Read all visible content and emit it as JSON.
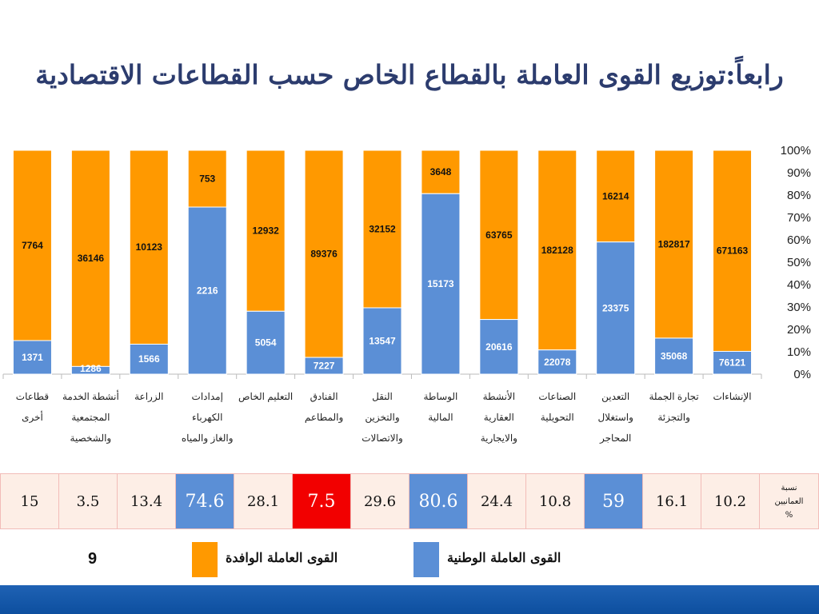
{
  "title": "رابعاً:توزيع القوى العاملة بالقطاع الخاص حسب القطاعات الاقتصادية",
  "chart_data": {
    "type": "bar",
    "stacked": "percent",
    "categories": [
      [
        "قطاعات",
        "أخرى"
      ],
      [
        "أنشطة الخدمة",
        "المجتمعية",
        "والشخصية"
      ],
      [
        "الزراعة"
      ],
      [
        "إمدادات",
        "الكهرباء",
        "والغاز والمياه"
      ],
      [
        "التعليم الخاص"
      ],
      [
        "الفنادق",
        "والمطاعم"
      ],
      [
        "النقل",
        "والتخزين",
        "والاتصالات"
      ],
      [
        "الوساطة",
        "المالية"
      ],
      [
        "الأنشطة",
        "العقارية",
        "والايجارية"
      ],
      [
        "الصناعات",
        "التحويلية"
      ],
      [
        "التعدين",
        "واستغلال",
        "المحاجر"
      ],
      [
        "تجارة الجملة",
        "والتجزئة"
      ],
      [
        "الإنشاءات"
      ]
    ],
    "series": [
      {
        "name": "القوى العاملة الوطنية",
        "color": "#5b8fd6",
        "values": [
          1371,
          1286,
          1566,
          2216,
          5054,
          7227,
          13547,
          15173,
          20616,
          22078,
          23375,
          35068,
          76121
        ]
      },
      {
        "name": "القوى العاملة الوافدة",
        "color": "#ff9900",
        "values": [
          7764,
          36146,
          10123,
          753,
          12932,
          89376,
          32152,
          3648,
          63765,
          182128,
          16214,
          182817,
          671163
        ]
      }
    ],
    "y_ticks": [
      "0%",
      "10%",
      "20%",
      "30%",
      "40%",
      "50%",
      "60%",
      "70%",
      "80%",
      "90%",
      "100%"
    ],
    "ylim": [
      0,
      100
    ],
    "legend": "bottom"
  },
  "ratio_row": {
    "header": [
      "نسبة",
      "العمانيين",
      "%"
    ],
    "values": [
      "15",
      "3.5",
      "13.4",
      "74.6",
      "28.1",
      "7.5",
      "29.6",
      "80.6",
      "24.4",
      "10.8",
      "59",
      "16.1",
      "10.2"
    ],
    "styles": [
      "plain",
      "plain",
      "plain",
      "blue",
      "plain",
      "red",
      "plain",
      "blue",
      "plain",
      "plain",
      "blue",
      "plain",
      "plain"
    ]
  },
  "page_number": "9",
  "legend": {
    "expat_label": "القوى العاملة الوافدة",
    "national_label": "القوى العاملة الوطنية",
    "expat_color": "#ff9900",
    "national_color": "#5b8fd6"
  }
}
